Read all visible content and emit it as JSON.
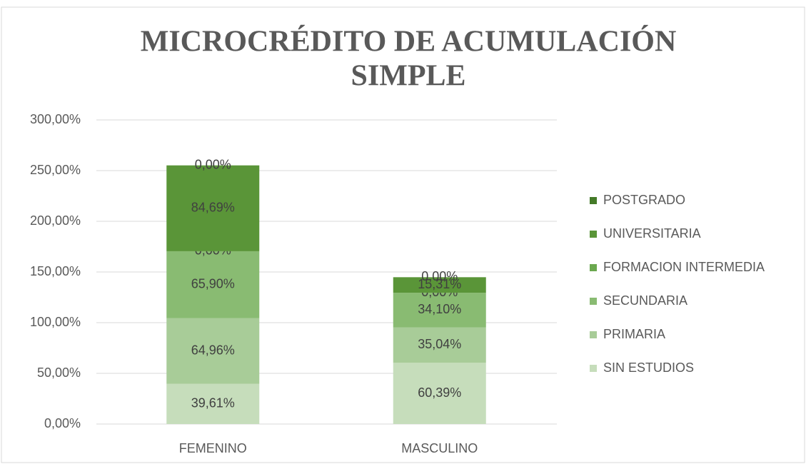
{
  "chart_data": {
    "type": "stacked_bar",
    "title": [
      "MICROCRÉDITO DE ACUMULACIÓN",
      "SIMPLE"
    ],
    "categories": [
      "FEMENINO",
      "MASCULINO"
    ],
    "series": [
      {
        "name": "SIN ESTUDIOS",
        "color": "#c6ddbb",
        "values": [
          39.61,
          60.39
        ],
        "value_labels": [
          "39,61%",
          "60,39%"
        ]
      },
      {
        "name": "PRIMARIA",
        "color": "#a8cc98",
        "values": [
          64.96,
          35.04
        ],
        "value_labels": [
          "64,96%",
          "35,04%"
        ]
      },
      {
        "name": "SECUNDARIA",
        "color": "#89bb72",
        "values": [
          65.9,
          34.1
        ],
        "value_labels": [
          "65,90%",
          "34,10%"
        ]
      },
      {
        "name": "FORMACION INTERMEDIA",
        "color": "#6ba84f",
        "values": [
          0.0,
          0.0
        ],
        "value_labels": [
          "0,00%",
          "0,00%"
        ]
      },
      {
        "name": "UNIVERSITARIA",
        "color": "#5a9538",
        "values": [
          84.69,
          15.31
        ],
        "value_labels": [
          "84,69%",
          "15,31%"
        ]
      },
      {
        "name": "POSTGRADO",
        "color": "#447a28",
        "values": [
          0.0,
          0.0
        ],
        "value_labels": [
          "0,00%",
          "0,00%"
        ]
      }
    ],
    "ylim": [
      0,
      300
    ],
    "yticks": [
      {
        "value": 0,
        "label": "0,00%"
      },
      {
        "value": 50,
        "label": "50,00%"
      },
      {
        "value": 100,
        "label": "100,00%"
      },
      {
        "value": 150,
        "label": "150,00%"
      },
      {
        "value": 200,
        "label": "200,00%"
      },
      {
        "value": 250,
        "label": "250,00%"
      },
      {
        "value": 300,
        "label": "300,00%"
      }
    ],
    "grid": true,
    "legend": "right"
  }
}
